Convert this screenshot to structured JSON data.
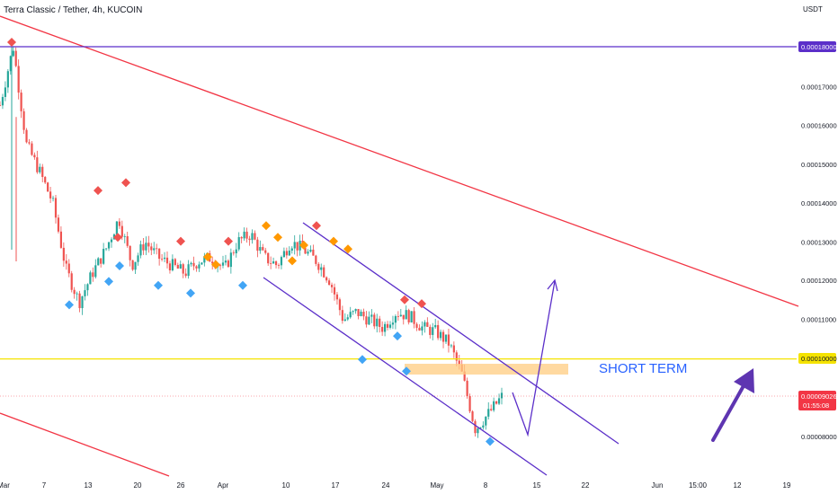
{
  "header": {
    "title": "Terra Classic / Tether, 4h, KUCOIN",
    "quote_unit": "USDT"
  },
  "chart_data": {
    "type": "candlestick",
    "x_ticks": [
      "Mar",
      "7",
      "13",
      "20",
      "26",
      "Apr",
      "10",
      "17",
      "24",
      "May",
      "8",
      "15",
      "22",
      "Jun",
      "15:00",
      "12",
      "19"
    ],
    "y_ticks": [
      "0.00018000",
      "0.00017000",
      "0.00016000",
      "0.00015000",
      "0.00014000",
      "0.00013000",
      "0.00012000",
      "0.00011000",
      "0.00010000",
      "0.00009026",
      "0.00008000"
    ],
    "ylim": [
      7.55e-05,
      0.0001905
    ],
    "price_labels": {
      "resistance_high": "0.00018000",
      "support_level": "0.00010000",
      "current_price": "0.00009026",
      "countdown": "01:55:08"
    },
    "annotation": "SHORT TERM",
    "colors": {
      "up": "#26a69a",
      "down": "#ef5350",
      "purple_line": "#5b2fc9",
      "red_trendline": "#f23645",
      "yellow_line": "#f5e300",
      "zone": "#ffcc80",
      "annotation": "#2962ff",
      "arrow": "#5e35b1",
      "marker_red": "#ef5350",
      "marker_orange": "#ff9800",
      "marker_blue": "#42a5f5"
    },
    "key_closes": [
      0.000165,
      0.00018,
      0.000155,
      0.000148,
      0.00014,
      0.000123,
      0.0001145,
      0.000122,
      0.000128,
      0.000136,
      0.000124,
      0.00013,
      0.000126,
      0.000124,
      0.000122,
      0.000125,
      0.000126,
      0.000123,
      0.00013,
      0.000132,
      0.000126,
      0.000124,
      0.00013,
      0.000128,
      0.000125,
      0.00012,
      0.00011,
      0.000112,
      0.00011,
      0.000108,
      0.000112,
      0.000111,
      0.000108,
      0.000107,
      0.000104,
      9.6e-05,
      8.2e-05,
      8.6e-05,
      9.03e-05
    ],
    "marker_points": [
      {
        "color": "red",
        "value": 0.00018
      },
      {
        "color": "red",
        "value": 0.000142
      },
      {
        "color": "red",
        "value": 0.000144
      },
      {
        "color": "red",
        "value": 0.00013
      },
      {
        "color": "red",
        "value": 0.000129
      },
      {
        "color": "red",
        "value": 0.000129
      },
      {
        "color": "red",
        "value": 0.000133
      },
      {
        "color": "red",
        "value": 0.000114
      },
      {
        "color": "red",
        "value": 0.000113
      },
      {
        "color": "orange",
        "value": 0.000125
      },
      {
        "color": "orange",
        "value": 0.000123
      },
      {
        "color": "orange",
        "value": 0.000133
      },
      {
        "color": "orange",
        "value": 0.00013
      },
      {
        "color": "orange",
        "value": 0.000124
      },
      {
        "color": "orange",
        "value": 0.000128
      },
      {
        "color": "orange",
        "value": 0.000129
      },
      {
        "color": "orange",
        "value": 0.000127
      },
      {
        "color": "blue",
        "value": 0.000115
      },
      {
        "color": "blue",
        "value": 0.000121
      },
      {
        "color": "blue",
        "value": 0.000125
      },
      {
        "color": "blue",
        "value": 0.00012
      },
      {
        "color": "blue",
        "value": 0.000118
      },
      {
        "color": "blue",
        "value": 0.00012
      },
      {
        "color": "blue",
        "value": 0.000101
      },
      {
        "color": "blue",
        "value": 0.000107
      },
      {
        "color": "blue",
        "value": 9.8e-05
      },
      {
        "color": "blue",
        "value": 8e-05
      }
    ]
  }
}
